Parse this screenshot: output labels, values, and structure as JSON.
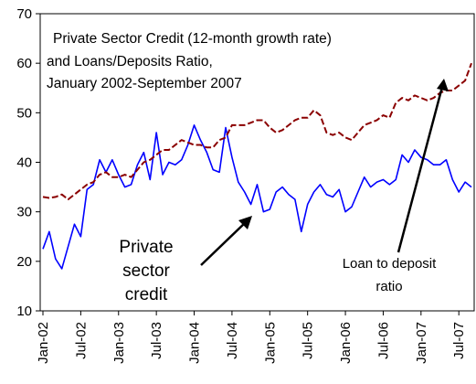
{
  "chart_data": {
    "type": "line",
    "title_lines": [
      "Private Sector Credit (12-month growth rate)",
      "and Loans/Deposits Ratio,",
      "January 2002-September 2007"
    ],
    "xlabel": "",
    "ylabel": "",
    "ylim": [
      10,
      70
    ],
    "yticks": [
      10,
      20,
      30,
      40,
      50,
      60,
      70
    ],
    "grid": false,
    "legend": "none",
    "x_start": "2002-01",
    "x_end": "2007-09",
    "xticks": [
      {
        "month_index": 0,
        "label": "Jan-02"
      },
      {
        "month_index": 6,
        "label": "Jul-02"
      },
      {
        "month_index": 12,
        "label": "Jan-03"
      },
      {
        "month_index": 18,
        "label": "Jul-03"
      },
      {
        "month_index": 24,
        "label": "Jan-04"
      },
      {
        "month_index": 30,
        "label": "Jul-04"
      },
      {
        "month_index": 36,
        "label": "Jan-05"
      },
      {
        "month_index": 42,
        "label": "Jul-05"
      },
      {
        "month_index": 48,
        "label": "Jan-06"
      },
      {
        "month_index": 54,
        "label": "Jul-06"
      },
      {
        "month_index": 60,
        "label": "Jan-07"
      },
      {
        "month_index": 66,
        "label": "Jul-07"
      }
    ],
    "series": [
      {
        "id": "credit",
        "color": "#0000ff",
        "dash": "solid",
        "values": [
          22.5,
          26,
          20.5,
          18.5,
          23,
          27.5,
          25,
          34.5,
          35.5,
          40.5,
          38,
          40.5,
          37.5,
          35,
          35.5,
          39.5,
          42,
          36.5,
          46,
          37.5,
          40,
          39.5,
          40.5,
          43.5,
          47.5,
          44.5,
          42,
          38.5,
          38,
          47,
          41,
          36,
          34,
          31.5,
          35.5,
          30,
          30.5,
          34,
          35,
          33.5,
          32.5,
          26,
          31.5,
          34,
          35.5,
          33.5,
          33,
          34.5,
          30,
          31,
          34,
          37,
          35,
          36,
          36.5,
          35.5,
          36.5,
          41.5,
          40,
          42.5,
          41,
          40.5,
          39.5,
          39.5,
          40.5,
          36.5,
          34,
          36,
          35
        ]
      },
      {
        "id": "ratio",
        "color": "#8b0000",
        "dash": "dashed",
        "values": [
          33,
          32.8,
          33,
          33.5,
          32.5,
          33.5,
          34.5,
          35.5,
          36,
          37.5,
          38,
          37,
          37,
          37.5,
          37,
          38.5,
          40,
          40.5,
          41.5,
          42.5,
          42.5,
          43.5,
          44.5,
          44,
          43.5,
          43.5,
          43,
          43,
          44.5,
          45,
          47.5,
          47.5,
          47.5,
          48,
          48.5,
          48.5,
          47,
          46,
          46.5,
          47.5,
          48.5,
          49,
          49,
          50.5,
          49.5,
          46,
          45.5,
          46,
          45,
          44.5,
          46,
          47.5,
          48,
          48.5,
          49.5,
          49,
          52,
          53,
          52.5,
          53.5,
          53,
          52.5,
          53,
          54,
          54.5,
          54.5,
          55.5,
          56.5,
          60
        ]
      }
    ],
    "annotations": [
      {
        "id": "private-sector-credit",
        "lines": [
          "Private",
          "sector",
          "credit"
        ]
      },
      {
        "id": "loan-to-deposit-ratio",
        "lines": [
          "Loan to deposit",
          "ratio"
        ]
      }
    ]
  }
}
